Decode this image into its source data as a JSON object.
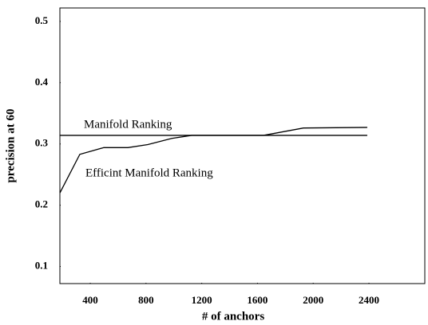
{
  "chart_data": {
    "type": "line",
    "x_label": "# of anchors",
    "y_label": "precision at 60",
    "xlim": [
      182,
      2801
    ],
    "ylim": [
      0.072,
      0.522
    ],
    "xticks": [
      400,
      800,
      1200,
      1600,
      2000,
      2400
    ],
    "yticks": [
      0.1,
      0.2,
      0.3,
      0.4,
      0.5
    ],
    "annotations": [
      "Manifold Ranking",
      "Efficint Manifold Ranking"
    ],
    "x": [
      182,
      325,
      497,
      670,
      813,
      985,
      1128,
      1644,
      1930,
      2388
    ],
    "series": [
      {
        "color": "#000000",
        "values": [
          0.314,
          0.314,
          0.314,
          0.314,
          0.314,
          0.314,
          0.314,
          0.314,
          0.314,
          0.314
        ]
      },
      {
        "color": "#000000",
        "values": [
          0.22,
          0.283,
          0.294,
          0.294,
          0.299,
          0.309,
          0.314,
          0.314,
          0.326,
          0.327
        ]
      }
    ]
  }
}
